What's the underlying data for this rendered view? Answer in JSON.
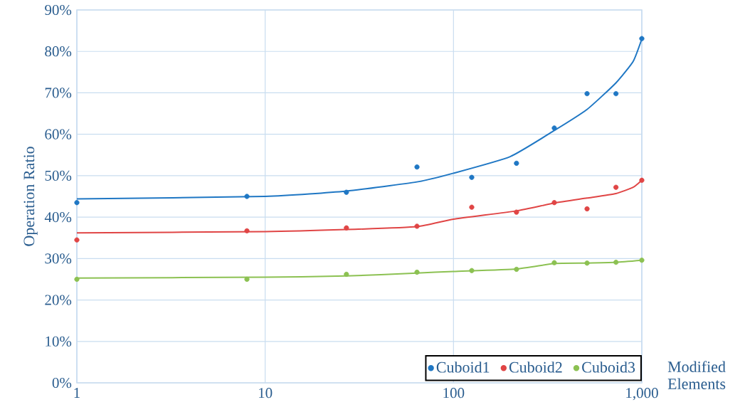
{
  "chart_data": {
    "type": "scatter",
    "xlabel": "Modified Elements",
    "ylabel": "Operation Ratio",
    "log": "x",
    "grid": true,
    "legend": "bottom right",
    "xlim": [
      1,
      1000
    ],
    "ylim": [
      0,
      90
    ],
    "xticks": [
      1,
      10,
      100,
      {
        "value": 1000,
        "label": "1,000"
      }
    ],
    "yticks": [
      {
        "value": 0,
        "label": "0%"
      },
      {
        "value": 10,
        "label": "10%"
      },
      {
        "value": 20,
        "label": "20%"
      },
      {
        "value": 30,
        "label": "30%"
      },
      {
        "value": 40,
        "label": "40%"
      },
      {
        "value": 50,
        "label": "50%"
      },
      {
        "value": 60,
        "label": "60%"
      },
      {
        "value": 70,
        "label": "70%"
      },
      {
        "value": 80,
        "label": "80%"
      },
      {
        "value": 90,
        "label": "90%"
      }
    ],
    "series": [
      {
        "name": "Cuboid1",
        "marker": "circle",
        "color": "#1f77c4",
        "x": [
          1,
          8,
          27,
          64,
          125,
          216,
          343,
          512,
          729,
          1000
        ],
        "values": [
          43.5,
          45.0,
          46.0,
          52.1,
          49.6,
          53.0,
          61.5,
          69.8,
          69.8,
          83.1
        ]
      },
      {
        "name": "Cuboid2",
        "marker": "circle",
        "color": "#e04545",
        "x": [
          1,
          8,
          27,
          64,
          125,
          216,
          343,
          512,
          729,
          1000
        ],
        "values": [
          34.5,
          36.7,
          37.4,
          37.8,
          42.4,
          41.2,
          43.5,
          42.0,
          47.2,
          48.9
        ]
      },
      {
        "name": "Cuboid3",
        "marker": "circle",
        "color": "#8cc152",
        "x": [
          1,
          8,
          27,
          64,
          125,
          216,
          343,
          512,
          729,
          1000
        ],
        "values": [
          25.0,
          25.0,
          26.2,
          26.7,
          27.1,
          27.4,
          29.0,
          28.9,
          29.1,
          29.6
        ]
      },
      {
        "type": "line",
        "marker": "none",
        "color": "#1f77c4",
        "x": [
          1,
          10,
          27,
          64,
          100,
          200,
          343,
          512,
          729,
          900,
          1000
        ],
        "values": [
          44.4,
          45.0,
          46.3,
          48.5,
          50.6,
          54.6,
          60.9,
          66.0,
          72.4,
          77.6,
          83.0
        ]
      },
      {
        "type": "line",
        "marker": "none",
        "color": "#e04545",
        "x": [
          1,
          10,
          27,
          64,
          100,
          216,
          343,
          512,
          729,
          900,
          1000
        ],
        "values": [
          36.2,
          36.5,
          37.0,
          37.7,
          39.5,
          41.5,
          43.4,
          44.6,
          45.7,
          47.2,
          48.9
        ]
      },
      {
        "type": "line",
        "marker": "none",
        "color": "#8cc152",
        "x": [
          1,
          10,
          27,
          64,
          100,
          216,
          343,
          512,
          729,
          1000
        ],
        "values": [
          25.3,
          25.5,
          25.8,
          26.5,
          26.9,
          27.5,
          28.8,
          28.9,
          29.1,
          29.6
        ]
      }
    ]
  }
}
